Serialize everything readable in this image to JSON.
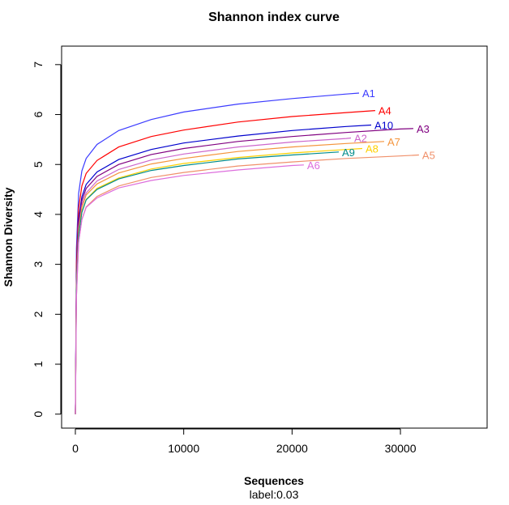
{
  "chart_data": {
    "type": "line",
    "title": "Shannon index curve",
    "xlabel": "Sequences",
    "ylabel": "Shannon Diversity",
    "subtitle": "label:0.03",
    "xlim": [
      -1270,
      38000
    ],
    "ylim": [
      -0.28,
      7.37
    ],
    "xticks": [
      0,
      10000,
      20000,
      30000
    ],
    "yticks": [
      0,
      1,
      2,
      3,
      4,
      5,
      6,
      7
    ],
    "grid": false,
    "legend": "inline labels at curve ends",
    "series": [
      {
        "name": "A1",
        "color": "#3b3bff",
        "x": [
          0,
          100,
          300,
          600,
          1000,
          2000,
          4000,
          7000,
          10000,
          15000,
          20000,
          25000,
          26180
        ],
        "y": [
          0,
          3.32,
          4.42,
          4.87,
          5.12,
          5.4,
          5.68,
          5.9,
          6.05,
          6.21,
          6.32,
          6.41,
          6.43
        ]
      },
      {
        "name": "A4",
        "color": "#ff0000",
        "x": [
          0,
          100,
          300,
          600,
          1000,
          2000,
          4000,
          7000,
          10000,
          15000,
          20000,
          25000,
          27670
        ],
        "y": [
          0,
          3.02,
          4.12,
          4.57,
          4.82,
          5.08,
          5.35,
          5.56,
          5.69,
          5.85,
          5.96,
          6.04,
          6.08
        ]
      },
      {
        "name": "A10",
        "color": "#0000cd",
        "x": [
          0,
          100,
          300,
          600,
          1000,
          2000,
          4000,
          7000,
          10000,
          15000,
          20000,
          25000,
          27300
        ],
        "y": [
          0,
          2.8,
          3.9,
          4.35,
          4.6,
          4.85,
          5.1,
          5.3,
          5.43,
          5.57,
          5.68,
          5.76,
          5.79
        ]
      },
      {
        "name": "A3",
        "color": "#800080",
        "x": [
          0,
          100,
          300,
          600,
          1000,
          2000,
          4000,
          7000,
          10000,
          15000,
          20000,
          25000,
          30000,
          31190
        ],
        "y": [
          0,
          2.72,
          3.82,
          4.27,
          4.52,
          4.76,
          5.0,
          5.2,
          5.32,
          5.46,
          5.56,
          5.64,
          5.71,
          5.72
        ]
      },
      {
        "name": "A2",
        "color": "#cc66cc",
        "x": [
          0,
          100,
          300,
          600,
          1000,
          2000,
          4000,
          7000,
          10000,
          15000,
          20000,
          25000,
          25430
        ],
        "y": [
          0,
          2.63,
          3.73,
          4.18,
          4.43,
          4.67,
          4.9,
          5.09,
          5.21,
          5.35,
          5.45,
          5.52,
          5.53
        ]
      },
      {
        "name": "A7",
        "color": "#f4943c",
        "x": [
          0,
          100,
          300,
          600,
          1000,
          2000,
          4000,
          7000,
          10000,
          15000,
          20000,
          25000,
          28500
        ],
        "y": [
          0,
          2.59,
          3.69,
          4.14,
          4.39,
          4.61,
          4.83,
          5.01,
          5.12,
          5.26,
          5.35,
          5.42,
          5.46
        ]
      },
      {
        "name": "A8",
        "color": "#ffd000",
        "x": [
          0,
          100,
          300,
          600,
          1000,
          2000,
          4000,
          7000,
          10000,
          15000,
          20000,
          25000,
          26480
        ],
        "y": [
          0,
          2.5,
          3.6,
          4.05,
          4.3,
          4.52,
          4.73,
          4.91,
          5.02,
          5.14,
          5.23,
          5.3,
          5.32
        ]
      },
      {
        "name": "A9",
        "color": "#008b8b",
        "x": [
          0,
          100,
          300,
          600,
          1000,
          2000,
          4000,
          7000,
          10000,
          15000,
          20000,
          24310
        ],
        "y": [
          0,
          2.49,
          3.59,
          4.04,
          4.29,
          4.5,
          4.71,
          4.88,
          4.98,
          5.11,
          5.19,
          5.25
        ]
      },
      {
        "name": "A5",
        "color": "#f0906a",
        "x": [
          0,
          100,
          300,
          600,
          1000,
          2000,
          4000,
          7000,
          10000,
          15000,
          20000,
          25000,
          30000,
          31710
        ],
        "y": [
          0,
          2.35,
          3.45,
          3.9,
          4.15,
          4.36,
          4.57,
          4.74,
          4.84,
          4.97,
          5.05,
          5.12,
          5.17,
          5.19
        ]
      },
      {
        "name": "A6",
        "color": "#dd6edd",
        "x": [
          0,
          100,
          300,
          600,
          1000,
          2000,
          4000,
          7000,
          10000,
          15000,
          20000,
          21090
        ],
        "y": [
          0,
          2.34,
          3.44,
          3.89,
          4.14,
          4.33,
          4.53,
          4.68,
          4.78,
          4.89,
          4.98,
          4.99
        ]
      }
    ]
  }
}
